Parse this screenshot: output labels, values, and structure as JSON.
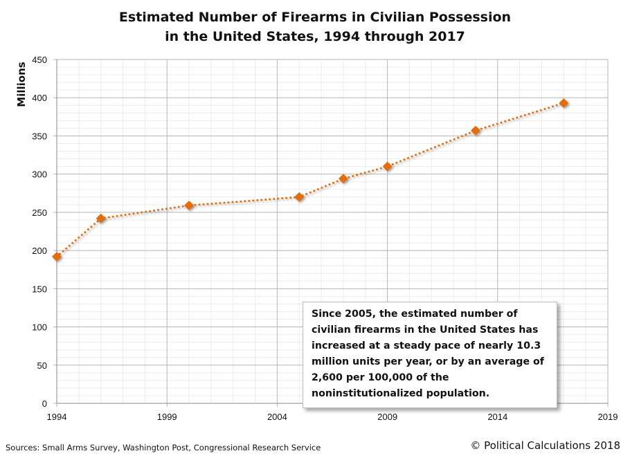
{
  "chart_data": {
    "type": "line",
    "title": [
      "Estimated Number of Firearms in Civilian Possession",
      "in the United States, 1994 through 2017"
    ],
    "ylabel": "Millions",
    "xlabel": "",
    "xlim": [
      1994,
      2019
    ],
    "ylim": [
      0,
      450
    ],
    "xticks": [
      1994,
      1999,
      2004,
      2009,
      2014,
      2019
    ],
    "yticks": [
      0,
      50,
      100,
      150,
      200,
      250,
      300,
      350,
      400,
      450
    ],
    "grid": true,
    "x": [
      1994,
      1996,
      2000,
      2005,
      2007,
      2009,
      2013,
      2017
    ],
    "y": [
      192,
      242,
      259,
      270,
      294,
      310,
      357,
      393
    ],
    "color": "#E36C0A",
    "marker": "diamond",
    "linestyle": "dotted",
    "annotation": "Since 2005, the estimated number of civilian firearms in the United States has increased at a steady pace of nearly 10.3 million units per year, or by an average of 2,600 per 100,000 of the noninstitutionalized population."
  },
  "footer": {
    "sources": "Sources: Small Arms Survey, Washington Post, Congressional Research Service",
    "copyright": "© Political Calculations 2018"
  }
}
